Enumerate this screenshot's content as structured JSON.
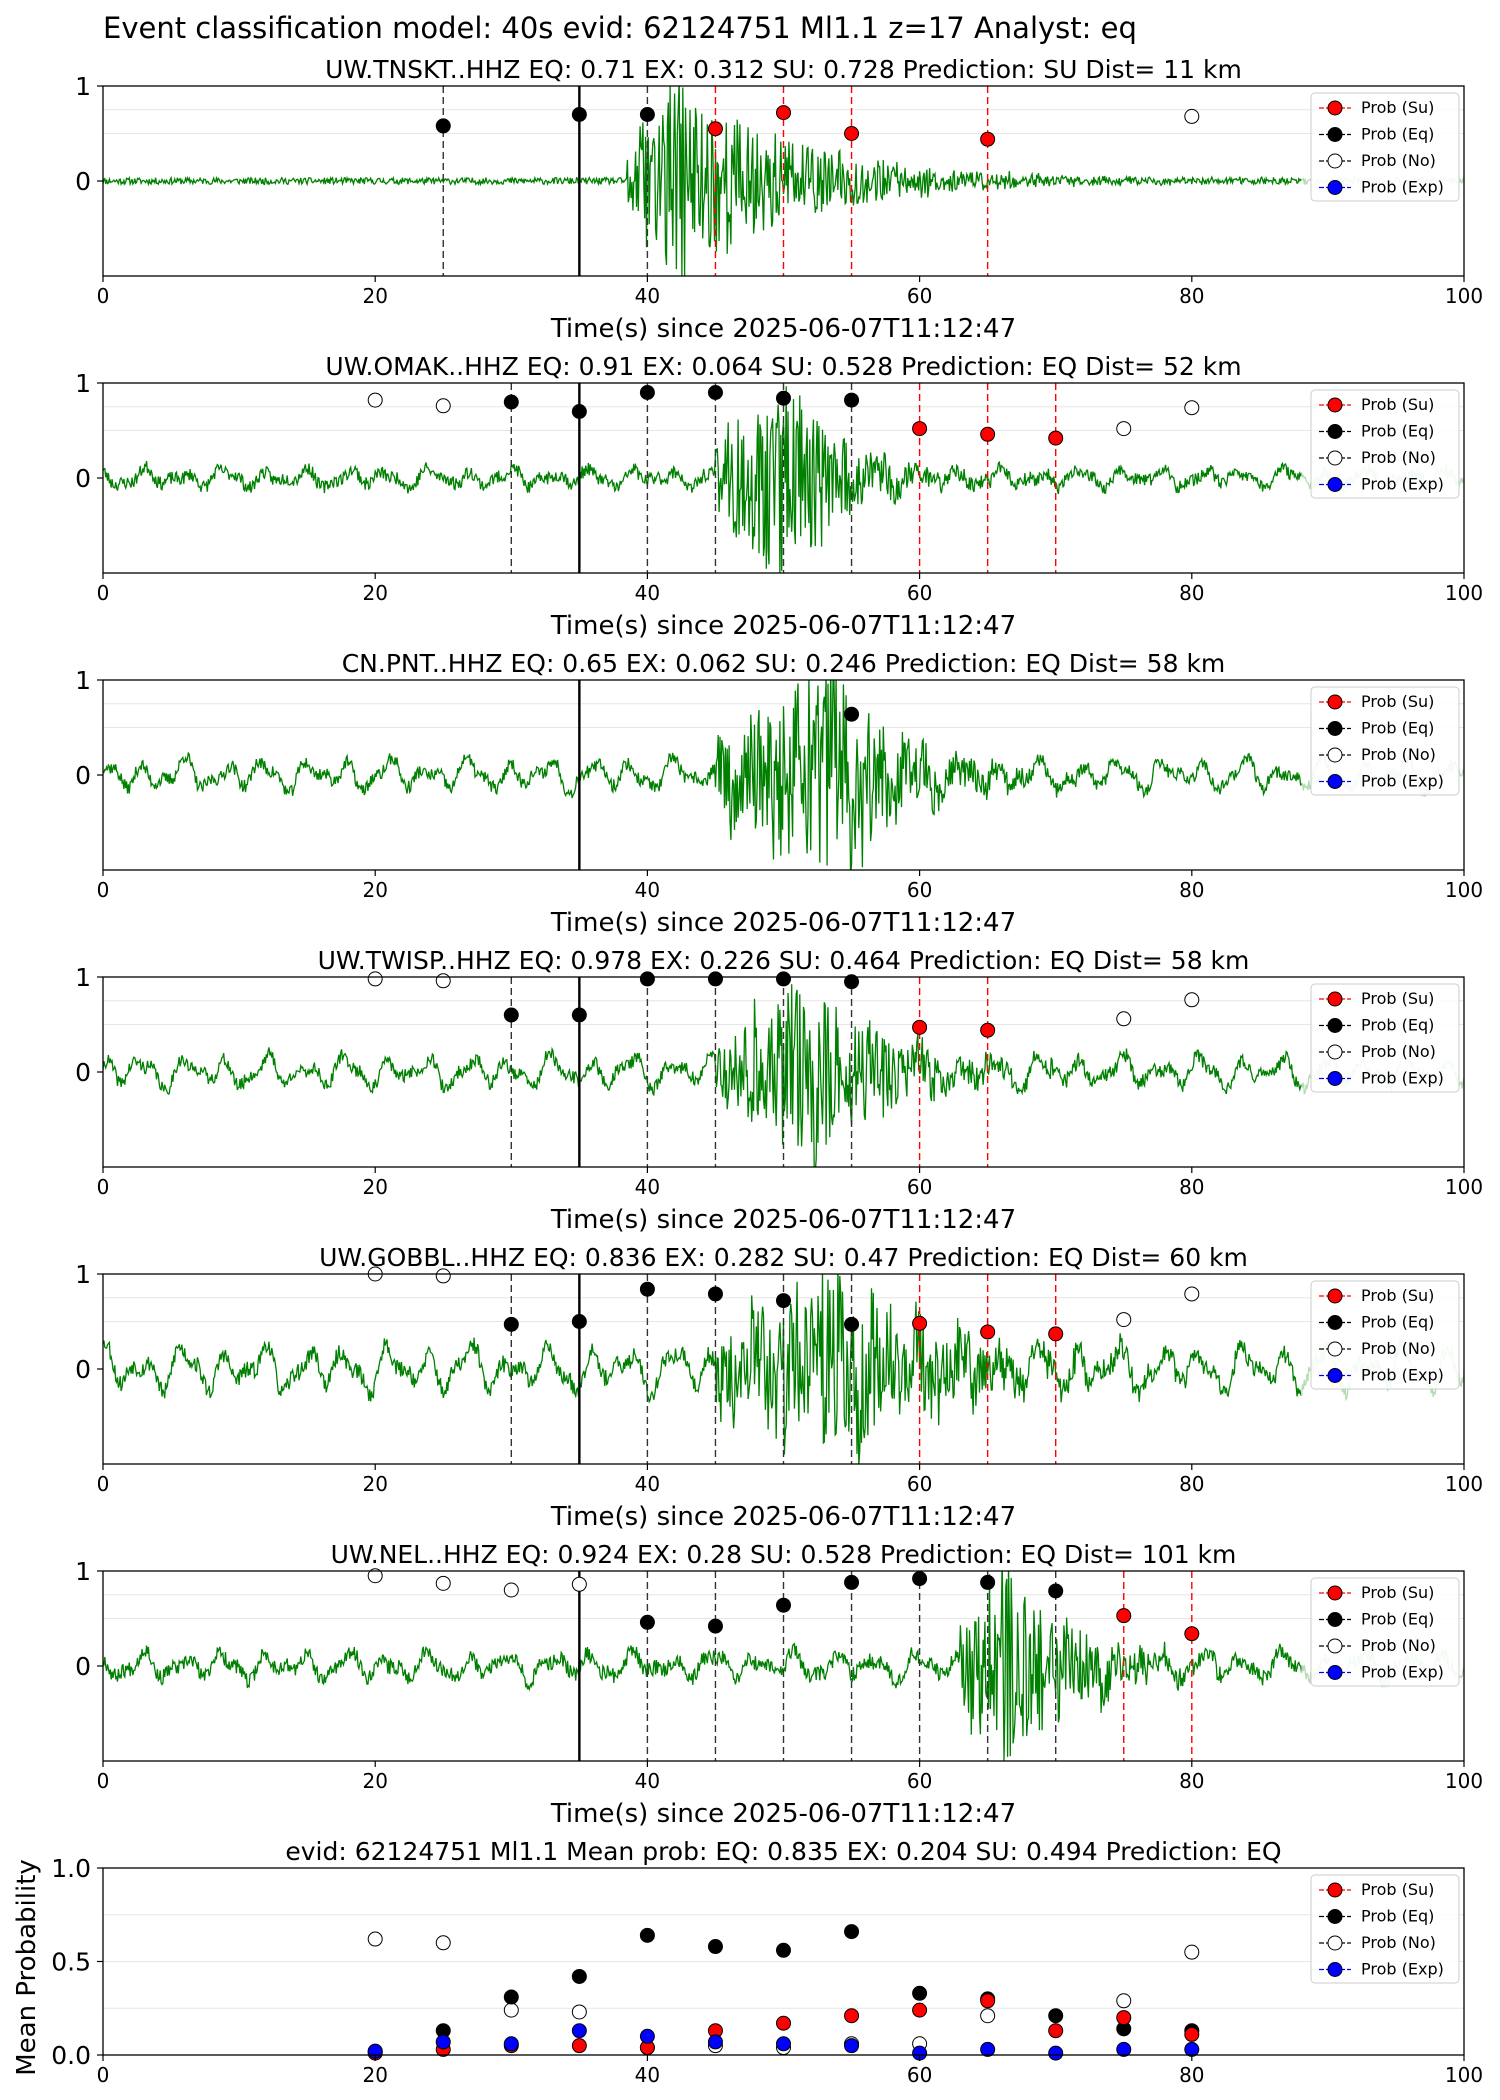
{
  "figure": {
    "suptitle": "Event classification model: 40s evid: 62124751 Ml1.1 z=17 Analyst: eq"
  },
  "legend": [
    "Prob (Su)",
    "Prob (Eq)",
    "Prob (No)",
    "Prob (Exp)"
  ],
  "colors": {
    "su": "#ff0000",
    "eq": "#000000",
    "no": "#ffffff",
    "exp": "#0000ff",
    "waveform": "#008000",
    "waveform_faded": "#b6dcb6"
  },
  "chart_data": [
    {
      "type": "line",
      "title": "UW.TNSKT..HHZ   EQ: 0.71  EX: 0.312  SU: 0.728   Prediction: SU    Dist= 11 km",
      "xlabel": "Time(s) since 2025-06-07T11:12:47",
      "xlim": [
        0,
        100
      ],
      "ylim": [
        -1,
        1
      ],
      "xticks": [
        "0",
        "20",
        "40",
        "60",
        "80",
        "100"
      ],
      "yticks": [
        "1",
        "0"
      ],
      "origin_time": 35,
      "waveform": {
        "onset": 38.5,
        "peak": 42,
        "decay": 9,
        "amp": 0.95,
        "noise": 0.035,
        "lowfreq": 0,
        "fade_from": 88,
        "seed": 11
      },
      "vlines": [
        {
          "x": 25,
          "color": "eq"
        },
        {
          "x": 40,
          "color": "eq"
        },
        {
          "x": 45,
          "color": "su"
        },
        {
          "x": 50,
          "color": "su"
        },
        {
          "x": 55,
          "color": "su"
        },
        {
          "x": 65,
          "color": "su"
        }
      ],
      "markers": [
        {
          "x": 25,
          "y": 0.58,
          "cls": "eq"
        },
        {
          "x": 35,
          "y": 0.7,
          "cls": "eq"
        },
        {
          "x": 40,
          "y": 0.7,
          "cls": "eq"
        },
        {
          "x": 45,
          "y": 0.55,
          "cls": "su"
        },
        {
          "x": 50,
          "y": 0.72,
          "cls": "su"
        },
        {
          "x": 55,
          "y": 0.5,
          "cls": "su"
        },
        {
          "x": 65,
          "y": 0.44,
          "cls": "su"
        },
        {
          "x": 80,
          "y": 0.68,
          "cls": "no"
        }
      ]
    },
    {
      "type": "line",
      "title": "UW.OMAK..HHZ   EQ: 0.91  EX: 0.064  SU: 0.528   Prediction: EQ    Dist= 52 km",
      "xlabel": "Time(s) since 2025-06-07T11:12:47",
      "xlim": [
        0,
        100
      ],
      "ylim": [
        -1,
        1
      ],
      "xticks": [
        "0",
        "20",
        "40",
        "60",
        "80",
        "100"
      ],
      "yticks": [
        "1",
        "0"
      ],
      "origin_time": 35,
      "waveform": {
        "onset": 45,
        "peak": 50.3,
        "decay": 4,
        "amp": 0.95,
        "noise": 0.07,
        "lowfreq": 0.1,
        "fade_from": 88,
        "seed": 23
      },
      "vlines": [
        {
          "x": 30,
          "color": "eq"
        },
        {
          "x": 40,
          "color": "eq"
        },
        {
          "x": 45,
          "color": "eq"
        },
        {
          "x": 50,
          "color": "eq"
        },
        {
          "x": 55,
          "color": "eq"
        },
        {
          "x": 60,
          "color": "su"
        },
        {
          "x": 65,
          "color": "su"
        },
        {
          "x": 70,
          "color": "su"
        }
      ],
      "markers": [
        {
          "x": 20,
          "y": 0.82,
          "cls": "no"
        },
        {
          "x": 25,
          "y": 0.76,
          "cls": "no"
        },
        {
          "x": 30,
          "y": 0.8,
          "cls": "eq"
        },
        {
          "x": 35,
          "y": 0.7,
          "cls": "eq"
        },
        {
          "x": 40,
          "y": 0.9,
          "cls": "eq"
        },
        {
          "x": 45,
          "y": 0.9,
          "cls": "eq"
        },
        {
          "x": 50,
          "y": 0.84,
          "cls": "eq"
        },
        {
          "x": 55,
          "y": 0.82,
          "cls": "eq"
        },
        {
          "x": 60,
          "y": 0.52,
          "cls": "su"
        },
        {
          "x": 65,
          "y": 0.46,
          "cls": "su"
        },
        {
          "x": 70,
          "y": 0.42,
          "cls": "su"
        },
        {
          "x": 75,
          "y": 0.52,
          "cls": "no"
        },
        {
          "x": 80,
          "y": 0.74,
          "cls": "no"
        }
      ]
    },
    {
      "type": "line",
      "title": "CN.PNT..HHZ   EQ: 0.65  EX: 0.062  SU: 0.246   Prediction: EQ    Dist= 58 km",
      "xlabel": "Time(s) since 2025-06-07T11:12:47",
      "xlim": [
        0,
        100
      ],
      "ylim": [
        -1,
        1
      ],
      "xticks": [
        "0",
        "20",
        "40",
        "60",
        "80",
        "100"
      ],
      "yticks": [
        "1",
        "0"
      ],
      "origin_time": 35,
      "waveform": {
        "onset": 45,
        "peak": 54,
        "decay": 5,
        "amp": 1.0,
        "noise": 0.07,
        "lowfreq": 0.17,
        "fade_from": 88,
        "seed": 37
      },
      "vlines": [],
      "markers": [
        {
          "x": 55,
          "y": 0.64,
          "cls": "eq"
        }
      ]
    },
    {
      "type": "line",
      "title": "UW.TWISP..HHZ   EQ: 0.978  EX: 0.226  SU: 0.464   Prediction: EQ    Dist= 58 km",
      "xlabel": "Time(s) since 2025-06-07T11:12:47",
      "xlim": [
        0,
        100
      ],
      "ylim": [
        -1,
        1
      ],
      "xticks": [
        "0",
        "20",
        "40",
        "60",
        "80",
        "100"
      ],
      "yticks": [
        "1",
        "0"
      ],
      "origin_time": 35,
      "waveform": {
        "onset": 45,
        "peak": 52,
        "decay": 6,
        "amp": 0.85,
        "noise": 0.07,
        "lowfreq": 0.17,
        "fade_from": 88,
        "seed": 41
      },
      "vlines": [
        {
          "x": 30,
          "color": "eq"
        },
        {
          "x": 40,
          "color": "eq"
        },
        {
          "x": 45,
          "color": "eq"
        },
        {
          "x": 50,
          "color": "eq"
        },
        {
          "x": 55,
          "color": "eq"
        },
        {
          "x": 60,
          "color": "su"
        },
        {
          "x": 65,
          "color": "su"
        }
      ],
      "markers": [
        {
          "x": 20,
          "y": 0.98,
          "cls": "no"
        },
        {
          "x": 25,
          "y": 0.96,
          "cls": "no"
        },
        {
          "x": 30,
          "y": 0.6,
          "cls": "eq"
        },
        {
          "x": 35,
          "y": 0.6,
          "cls": "eq"
        },
        {
          "x": 40,
          "y": 0.98,
          "cls": "eq"
        },
        {
          "x": 45,
          "y": 0.98,
          "cls": "eq"
        },
        {
          "x": 50,
          "y": 0.98,
          "cls": "eq"
        },
        {
          "x": 55,
          "y": 0.95,
          "cls": "eq"
        },
        {
          "x": 60,
          "y": 0.47,
          "cls": "su"
        },
        {
          "x": 65,
          "y": 0.44,
          "cls": "su"
        },
        {
          "x": 75,
          "y": 0.56,
          "cls": "no"
        },
        {
          "x": 80,
          "y": 0.76,
          "cls": "no"
        }
      ]
    },
    {
      "type": "line",
      "title": "UW.GOBBL..HHZ   EQ: 0.836  EX: 0.282  SU: 0.47   Prediction: EQ    Dist= 60 km",
      "xlabel": "Time(s) since 2025-06-07T11:12:47",
      "xlim": [
        0,
        100
      ],
      "ylim": [
        -1,
        1
      ],
      "xticks": [
        "0",
        "20",
        "40",
        "60",
        "80",
        "100"
      ],
      "yticks": [
        "1",
        "0"
      ],
      "origin_time": 35,
      "waveform": {
        "onset": 45,
        "peak": 54,
        "decay": 8,
        "amp": 0.9,
        "noise": 0.09,
        "lowfreq": 0.25,
        "fade_from": 88,
        "seed": 53
      },
      "vlines": [
        {
          "x": 30,
          "color": "eq"
        },
        {
          "x": 40,
          "color": "eq"
        },
        {
          "x": 45,
          "color": "eq"
        },
        {
          "x": 50,
          "color": "eq"
        },
        {
          "x": 55,
          "color": "eq"
        },
        {
          "x": 60,
          "color": "su"
        },
        {
          "x": 65,
          "color": "su"
        },
        {
          "x": 70,
          "color": "su"
        }
      ],
      "markers": [
        {
          "x": 20,
          "y": 1.0,
          "cls": "no"
        },
        {
          "x": 25,
          "y": 0.98,
          "cls": "no"
        },
        {
          "x": 30,
          "y": 0.47,
          "cls": "eq"
        },
        {
          "x": 35,
          "y": 0.5,
          "cls": "eq"
        },
        {
          "x": 40,
          "y": 0.84,
          "cls": "eq"
        },
        {
          "x": 45,
          "y": 0.79,
          "cls": "eq"
        },
        {
          "x": 50,
          "y": 0.72,
          "cls": "eq"
        },
        {
          "x": 55,
          "y": 0.47,
          "cls": "eq"
        },
        {
          "x": 60,
          "y": 0.48,
          "cls": "su"
        },
        {
          "x": 65,
          "y": 0.39,
          "cls": "su"
        },
        {
          "x": 70,
          "y": 0.37,
          "cls": "su"
        },
        {
          "x": 75,
          "y": 0.52,
          "cls": "no"
        },
        {
          "x": 80,
          "y": 0.79,
          "cls": "no"
        }
      ]
    },
    {
      "type": "line",
      "title": "UW.NEL..HHZ   EQ: 0.924  EX: 0.28  SU: 0.528   Prediction: EQ    Dist= 101 km",
      "xlabel": "Time(s) since 2025-06-07T11:12:47",
      "xlim": [
        0,
        100
      ],
      "ylim": [
        -1,
        1
      ],
      "xticks": [
        "0",
        "20",
        "40",
        "60",
        "80",
        "100"
      ],
      "yticks": [
        "1",
        "0"
      ],
      "origin_time": 35,
      "waveform": {
        "onset": 63,
        "peak": 66,
        "decay": 5,
        "amp": 1.0,
        "noise": 0.08,
        "lowfreq": 0.15,
        "fade_from": 88,
        "seed": 67
      },
      "vlines": [
        {
          "x": 40,
          "color": "eq"
        },
        {
          "x": 45,
          "color": "eq"
        },
        {
          "x": 50,
          "color": "eq"
        },
        {
          "x": 55,
          "color": "eq"
        },
        {
          "x": 60,
          "color": "eq"
        },
        {
          "x": 65,
          "color": "eq"
        },
        {
          "x": 70,
          "color": "eq"
        },
        {
          "x": 75,
          "color": "su"
        },
        {
          "x": 80,
          "color": "su"
        }
      ],
      "markers": [
        {
          "x": 20,
          "y": 0.95,
          "cls": "no"
        },
        {
          "x": 25,
          "y": 0.87,
          "cls": "no"
        },
        {
          "x": 30,
          "y": 0.8,
          "cls": "no"
        },
        {
          "x": 35,
          "y": 0.86,
          "cls": "no"
        },
        {
          "x": 40,
          "y": 0.46,
          "cls": "eq"
        },
        {
          "x": 45,
          "y": 0.42,
          "cls": "eq"
        },
        {
          "x": 50,
          "y": 0.64,
          "cls": "eq"
        },
        {
          "x": 55,
          "y": 0.88,
          "cls": "eq"
        },
        {
          "x": 60,
          "y": 0.92,
          "cls": "eq"
        },
        {
          "x": 65,
          "y": 0.88,
          "cls": "eq"
        },
        {
          "x": 70,
          "y": 0.79,
          "cls": "eq"
        },
        {
          "x": 75,
          "y": 0.53,
          "cls": "su"
        },
        {
          "x": 80,
          "y": 0.34,
          "cls": "su"
        }
      ]
    },
    {
      "type": "scatter",
      "title": "evid: 62124751  Ml1.1   Mean prob:   EQ: 0.835  EX: 0.204  SU: 0.494   Prediction: EQ",
      "ylabel": "Mean Probability",
      "xlim": [
        0,
        100
      ],
      "ylim": [
        0,
        1
      ],
      "xticks": [
        "0",
        "20",
        "40",
        "60",
        "80",
        "100"
      ],
      "yticks": [
        "1.0",
        "0.5",
        "0.0"
      ],
      "x": [
        20,
        25,
        30,
        35,
        40,
        45,
        50,
        55,
        60,
        65,
        70,
        75,
        80
      ],
      "series": [
        {
          "name": "Prob (No)",
          "cls": "no",
          "values": [
            0.62,
            0.6,
            0.24,
            0.23,
            0.04,
            0.05,
            0.04,
            0.06,
            0.06,
            0.21,
            null,
            0.29,
            0.55
          ]
        },
        {
          "name": "Prob (Eq)",
          "cls": "eq",
          "values": [
            0.02,
            0.13,
            0.31,
            0.42,
            0.64,
            0.58,
            0.56,
            0.66,
            0.33,
            0.3,
            0.21,
            0.14,
            0.13
          ]
        },
        {
          "name": "Prob (Su)",
          "cls": "su",
          "values": [
            0.01,
            0.03,
            0.05,
            0.05,
            0.04,
            0.13,
            0.17,
            0.21,
            0.24,
            0.29,
            0.13,
            0.2,
            0.11
          ]
        },
        {
          "name": "Prob (Exp)",
          "cls": "exp",
          "values": [
            0.02,
            0.07,
            0.06,
            0.13,
            0.1,
            0.07,
            0.06,
            0.05,
            0.01,
            0.03,
            0.01,
            0.03,
            0.03
          ]
        }
      ]
    }
  ]
}
